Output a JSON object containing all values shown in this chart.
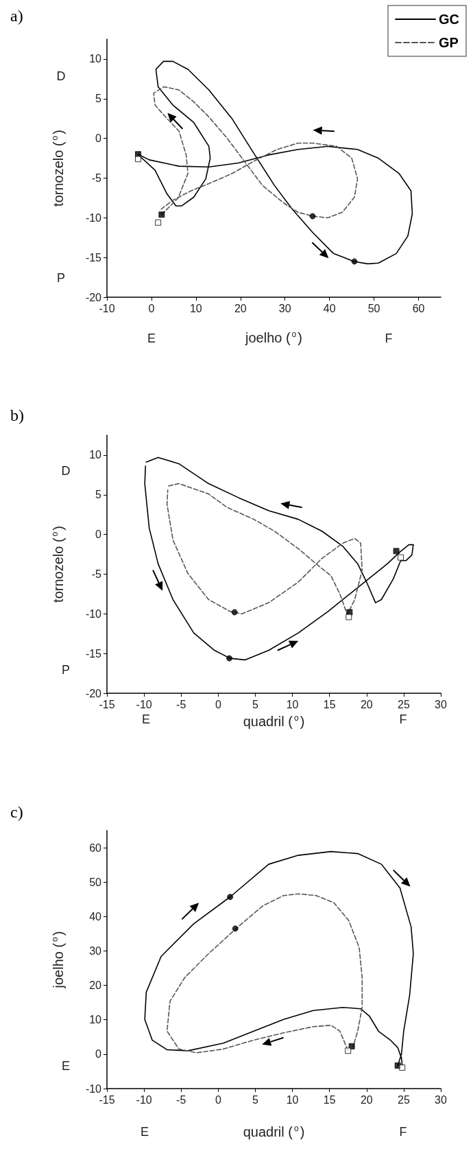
{
  "chart_data": [
    {
      "type": "line",
      "title": "a)",
      "xlabel": "joelho ($^{o}$)",
      "ylabel": "tornozelo ($^{o}$)",
      "xlim": [
        -10,
        65
      ],
      "xticks": [
        -10,
        0,
        10,
        20,
        30,
        40,
        50,
        60
      ],
      "ylim": [
        -20,
        12.5
      ],
      "yticks": [
        -20,
        -15,
        -10,
        -5,
        0,
        5,
        10
      ],
      "legend": "top right",
      "annotations": [
        "D",
        "P",
        "E",
        "F"
      ],
      "series": [
        {
          "name": "GC",
          "color": "#000000",
          "line_style": "solid",
          "marker": "none",
          "x": [
            -3,
            -0.5,
            6.2,
            12.9,
            19.5,
            26.2,
            32.9,
            39.6,
            46.3,
            51,
            55.6,
            58.3,
            58.6,
            57.6,
            55,
            51,
            48.6,
            45.5,
            40.9,
            36.3,
            31.6,
            27.6,
            22.9,
            18.2,
            12.9,
            8.2,
            4.8,
            2.7,
            1,
            1.5,
            4.8,
            9.5,
            12.9,
            13.2,
            12.2,
            9.5,
            6.8,
            5.5,
            3.5,
            0.8,
            -2.5
          ],
          "values": [
            -2,
            -2.7,
            -3.5,
            -3.6,
            -3.1,
            -2.1,
            -1.4,
            -1,
            -1.4,
            -2.5,
            -4.4,
            -6.6,
            -9.5,
            -12.3,
            -14.5,
            -15.7,
            -15.8,
            -15.5,
            -14.5,
            -11.9,
            -8.9,
            -5.9,
            -1.8,
            2.4,
            6.1,
            8.7,
            9.7,
            9.7,
            8.7,
            6.5,
            4.2,
            2,
            -1,
            -2.5,
            -5.1,
            -7.4,
            -8.5,
            -8.5,
            -7,
            -4,
            -2.3
          ]
        },
        {
          "name": "GP",
          "color": "#555555",
          "line_style": "dashed",
          "marker": "none",
          "x": [
            2.3,
            6,
            8.2,
            7.8,
            6.2,
            3,
            0.8,
            0.5,
            2.8,
            6.2,
            9.5,
            12.9,
            16.9,
            20.9,
            24.9,
            29.6,
            32.9,
            36.3,
            39.6,
            42.9,
            45.6,
            46.3,
            45,
            41.6,
            36.3,
            32.9,
            28.2,
            22.9,
            18.2,
            12.9,
            8.9,
            4.8,
            2.2
          ],
          "values": [
            -9.6,
            -7.5,
            -4.4,
            -2.1,
            0.9,
            2.8,
            4.2,
            5.7,
            6.5,
            6.1,
            4.6,
            2.7,
            0.1,
            -2.9,
            -5.9,
            -8.1,
            -9.3,
            -9.8,
            -10,
            -9.3,
            -7.4,
            -5.1,
            -2.5,
            -1,
            -0.6,
            -0.6,
            -1.4,
            -2.9,
            -4.4,
            -5.7,
            -6.6,
            -7.8,
            -8.9
          ]
        },
        {
          "type": "scatter",
          "marker": "square",
          "color": "#000000",
          "x": [
            -3,
            2.3
          ],
          "values": [
            -2,
            -9.6
          ]
        },
        {
          "type": "scatter",
          "marker": "square",
          "color": "#ffffff",
          "x": [
            -3,
            1.5
          ],
          "values": [
            -2.6,
            -10.6
          ]
        },
        {
          "type": "scatter",
          "marker": "circle",
          "color": "#000000",
          "x": [
            36.2,
            45.6
          ],
          "values": [
            -9.8,
            -15.5
          ]
        }
      ]
    },
    {
      "type": "line",
      "title": "b)",
      "xlabel": "quadril ($^{o}$)",
      "ylabel": "tornozelo ($^{o}$)",
      "xlim": [
        -15,
        30
      ],
      "xticks": [
        -15,
        -10,
        -5,
        0,
        5,
        10,
        15,
        20,
        25,
        30
      ],
      "ylim": [
        -20,
        12.5
      ],
      "yticks": [
        -20,
        -15,
        -10,
        -5,
        0,
        5,
        10
      ],
      "annotations": [
        "D",
        "P",
        "E",
        "F"
      ],
      "series": [
        {
          "color": "#000000",
          "line_style": "solid",
          "marker": "none",
          "x": [
            -9.7,
            -8.1,
            -5.3,
            -1.3,
            2.8,
            6.8,
            10.8,
            14,
            16.8,
            18.8,
            20,
            21.2,
            22,
            23.6,
            24.6,
            25.3,
            26.1,
            26.3,
            25.7,
            24.5,
            22.8,
            18.8,
            14.8,
            10.8,
            6.8,
            3.6,
            1.6,
            -0.5,
            -3.3,
            -6.1,
            -8.1,
            -9.3,
            -9.9,
            -9.8
          ],
          "values": [
            9.1,
            9.7,
            8.9,
            6.4,
            4.6,
            3,
            1.9,
            0.4,
            -1.5,
            -3.7,
            -6,
            -8.6,
            -8.2,
            -5.6,
            -3.3,
            -3.3,
            -2.6,
            -1.3,
            -1.3,
            -2.2,
            -3.7,
            -6.7,
            -9.7,
            -12.4,
            -14.6,
            -15.8,
            -15.6,
            -14.6,
            -12.4,
            -8.2,
            -3.7,
            0.8,
            6.4,
            8.6
          ]
        },
        {
          "color": "#555555",
          "line_style": "dashed",
          "marker": "none",
          "x": [
            -6.7,
            -5.3,
            -1.3,
            1.2,
            4.8,
            7.6,
            10.8,
            13.2,
            15.2,
            16.4,
            17.4,
            18.4,
            19.4,
            19.2,
            18.4,
            16.8,
            14,
            10.8,
            6.8,
            3.2,
            1.6,
            -1.3,
            -4.1,
            -6.1,
            -6.9,
            -6.8
          ],
          "values": [
            6.1,
            6.4,
            5.1,
            3.4,
            1.9,
            0.4,
            -1.8,
            -3.7,
            -5.2,
            -7.5,
            -10.1,
            -8.2,
            -4.5,
            -1.1,
            -0.5,
            -1.1,
            -3,
            -6,
            -8.6,
            -10,
            -9.7,
            -8.2,
            -4.9,
            -0.7,
            3.8,
            5.6
          ]
        },
        {
          "type": "scatter",
          "marker": "square",
          "color": "#000000",
          "x": [
            24,
            17.7
          ],
          "values": [
            -2.1,
            -9.8
          ]
        },
        {
          "type": "scatter",
          "marker": "square",
          "color": "#ffffff",
          "x": [
            24.6,
            17.6
          ],
          "values": [
            -2.9,
            -10.4
          ]
        },
        {
          "type": "scatter",
          "marker": "circle",
          "color": "#000000",
          "x": [
            2.2,
            1.5
          ],
          "values": [
            -9.8,
            -15.6
          ]
        }
      ]
    },
    {
      "type": "line",
      "title": "c)",
      "xlabel": "quadril ($^{o}$)",
      "ylabel": "joelho ($^{o}$)",
      "xlim": [
        -15,
        30
      ],
      "xticks": [
        -15,
        -10,
        -5,
        0,
        5,
        10,
        15,
        20,
        25,
        30
      ],
      "ylim": [
        -10,
        65
      ],
      "yticks": [
        -10,
        0,
        10,
        20,
        30,
        40,
        50,
        60
      ],
      "annotations": [
        "E",
        "E",
        "F"
      ],
      "series": [
        {
          "color": "#000000",
          "line_style": "solid",
          "marker": "none",
          "x": [
            24.2,
            24.7,
            25,
            25.8,
            26.3,
            26,
            24.5,
            22,
            18.8,
            15.2,
            10.8,
            6.8,
            1.6,
            -3.3,
            -7.7,
            -9.7,
            -9.9,
            -8.9,
            -6.9,
            -4.1,
            0.7,
            4.8,
            8.8,
            12.8,
            16.8,
            19.2,
            20.4,
            21.6,
            23.2,
            24.2,
            24.7,
            24.8
          ],
          "values": [
            -3.3,
            0,
            6.7,
            17.1,
            29.2,
            37,
            48.3,
            55.2,
            58.3,
            58.9,
            57.8,
            55.2,
            45.7,
            37.9,
            28.4,
            18,
            10.1,
            4.1,
            1.3,
            1,
            3.2,
            6.7,
            10.1,
            12.7,
            13.6,
            13.2,
            11,
            6.7,
            4.1,
            1.9,
            -1.1,
            -3.3
          ]
        },
        {
          "color": "#555555",
          "line_style": "dashed",
          "marker": "none",
          "x": [
            17.5,
            16.4,
            15.2,
            12.8,
            8.8,
            4.8,
            0.7,
            -2.9,
            -5.3,
            -6.9,
            -6.5,
            -4.5,
            -1.3,
            2.4,
            6,
            8.8,
            10.8,
            13.2,
            15.6,
            17.6,
            19,
            19.4,
            19.4,
            18.8,
            18.2
          ],
          "values": [
            1,
            6.7,
            8.4,
            8,
            6.2,
            4.1,
            1.5,
            0.4,
            1.5,
            6.7,
            15.4,
            22.3,
            29.2,
            36.5,
            43.1,
            46.1,
            46.6,
            46.1,
            44,
            38.8,
            31,
            22.3,
            13.6,
            6.7,
            2.3
          ]
        },
        {
          "type": "scatter",
          "marker": "square",
          "color": "#000000",
          "x": [
            18,
            24.2
          ],
          "values": [
            2.3,
            -3.3
          ]
        },
        {
          "type": "scatter",
          "marker": "square",
          "color": "#ffffff",
          "x": [
            17.5,
            24.8
          ],
          "values": [
            1,
            -3.9
          ]
        },
        {
          "type": "scatter",
          "marker": "circle",
          "color": "#000000",
          "x": [
            1.6,
            2.3
          ],
          "values": [
            45.7,
            36.5
          ]
        }
      ]
    }
  ]
}
